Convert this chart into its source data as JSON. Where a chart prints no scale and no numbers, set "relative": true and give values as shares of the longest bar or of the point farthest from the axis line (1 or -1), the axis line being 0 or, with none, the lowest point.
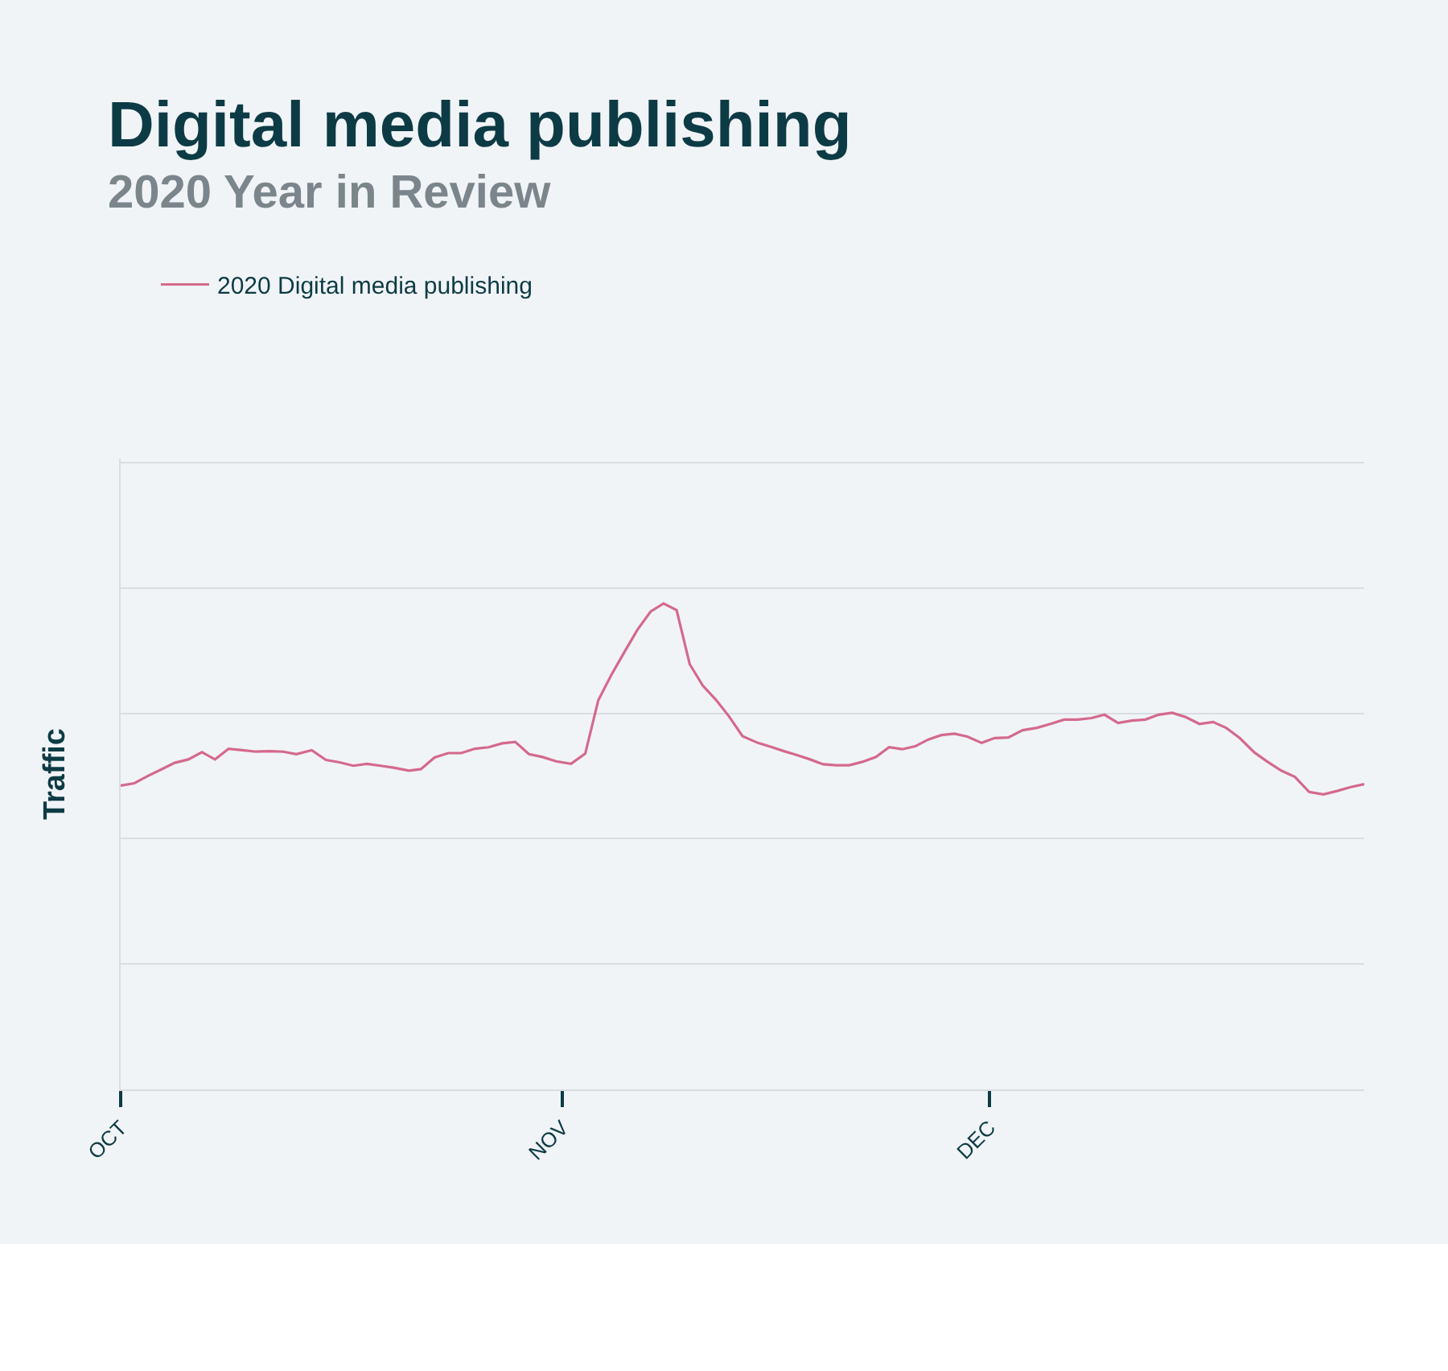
{
  "chart_data": {
    "type": "line",
    "title": "Digital media publishing",
    "subtitle": "2020 Year in Review",
    "ylabel": "Traffic",
    "relative": true,
    "grid": "y",
    "legend": "top left",
    "marker": "none",
    "line_style": "solid",
    "xlim": [
      "2020-10-01",
      "2020-12-27T08:00"
    ],
    "xticks": [
      {
        "value": "2020-10-01",
        "label": "OCT"
      },
      {
        "value": "2020-11-01",
        "label": "NOV"
      },
      {
        "value": "2020-12-01",
        "label": "DEC"
      }
    ],
    "series": [
      {
        "name": "2020 Digital media publishing",
        "color": "#d4698c",
        "x": [
          "2020-10-01T00:00",
          "2020-10-01T23:00",
          "2020-10-02T22:00",
          "2020-10-03T20:00",
          "2020-10-04T19:00",
          "2020-10-05T18:00",
          "2020-10-06T17:00",
          "2020-10-07T15:00",
          "2020-10-08T14:00",
          "2020-10-09T13:00",
          "2020-10-10T12:00",
          "2020-10-11T11:00",
          "2020-10-12T10:00",
          "2020-10-13T08:00",
          "2020-10-14T10:00",
          "2020-10-15T10:00",
          "2020-10-16T09:00",
          "2020-10-17T08:00",
          "2020-10-18T07:00",
          "2020-10-19T06:00",
          "2020-10-20T04:00",
          "2020-10-21T06:00",
          "2020-10-22T02:00",
          "2020-10-23T01:00",
          "2020-10-24T00:00",
          "2020-10-24T22:00",
          "2020-10-25T21:00",
          "2020-10-26T20:00",
          "2020-10-27T19:00",
          "2020-10-28T17:00",
          "2020-10-29T16:00",
          "2020-10-30T15:00",
          "2020-10-31T14:00",
          "2020-11-01T15:00",
          "2020-11-02T15:00",
          "2020-11-03T13:00",
          "2020-11-04T11:00",
          "2020-11-05T09:00",
          "2020-11-06T07:00",
          "2020-11-07T05:00",
          "2020-11-08T03:00",
          "2020-11-09T01:00",
          "2020-11-09T23:00",
          "2020-11-10T21:00",
          "2020-11-11T19:00",
          "2020-11-12T17:00",
          "2020-11-13T16:00",
          "2020-11-14T18:00",
          "2020-11-15T16:00",
          "2020-11-16T14:00",
          "2020-11-17T12:00",
          "2020-11-18T10:00",
          "2020-11-19T08:00",
          "2020-11-20T06:00",
          "2020-11-21T04:00",
          "2020-11-22T02:00",
          "2020-11-23T01:00",
          "2020-11-23T23:00",
          "2020-11-24T21:00",
          "2020-11-25T19:00",
          "2020-11-26T17:00",
          "2020-11-27T15:00",
          "2020-11-28T13:00",
          "2020-11-29T11:00",
          "2020-11-30T11:00",
          "2020-12-01T09:00",
          "2020-12-02T08:00",
          "2020-12-03T08:00",
          "2020-12-04T08:00",
          "2020-12-05T07:00",
          "2020-12-06T06:00",
          "2020-12-07T05:00",
          "2020-12-08T04:00",
          "2020-12-09T02:00",
          "2020-12-10T01:00",
          "2020-12-11T00:00",
          "2020-12-11T23:00",
          "2020-12-12T21:00",
          "2020-12-13T20:00",
          "2020-12-14T19:00",
          "2020-12-15T18:00",
          "2020-12-16T17:00",
          "2020-12-17T15:00",
          "2020-12-18T14:00",
          "2020-12-19T15:00",
          "2020-12-20T12:00",
          "2020-12-21T12:00",
          "2020-12-22T11:00",
          "2020-12-23T11:00",
          "2020-12-24T11:00",
          "2020-12-25T10:00",
          "2020-12-26T09:00",
          "2020-12-27T08:00"
        ],
        "values": [
          0.625,
          0.63,
          0.645,
          0.658,
          0.672,
          0.679,
          0.694,
          0.679,
          0.701,
          0.698,
          0.695,
          0.696,
          0.695,
          0.69,
          0.698,
          0.678,
          0.673,
          0.666,
          0.67,
          0.666,
          0.662,
          0.656,
          0.659,
          0.683,
          0.692,
          0.692,
          0.701,
          0.704,
          0.712,
          0.715,
          0.69,
          0.684,
          0.675,
          0.67,
          0.691,
          0.801,
          0.853,
          0.9,
          0.946,
          0.983,
          1,
          0.986,
          0.875,
          0.831,
          0.802,
          0.768,
          0.727,
          0.713,
          0.705,
          0.696,
          0.688,
          0.679,
          0.669,
          0.667,
          0.667,
          0.674,
          0.684,
          0.704,
          0.7,
          0.706,
          0.72,
          0.729,
          0.732,
          0.726,
          0.713,
          0.723,
          0.724,
          0.739,
          0.744,
          0.752,
          0.761,
          0.761,
          0.764,
          0.771,
          0.754,
          0.759,
          0.761,
          0.771,
          0.775,
          0.766,
          0.752,
          0.756,
          0.744,
          0.723,
          0.693,
          0.675,
          0.656,
          0.643,
          0.612,
          0.607,
          0.614,
          0.622,
          0.628
        ]
      }
    ]
  }
}
